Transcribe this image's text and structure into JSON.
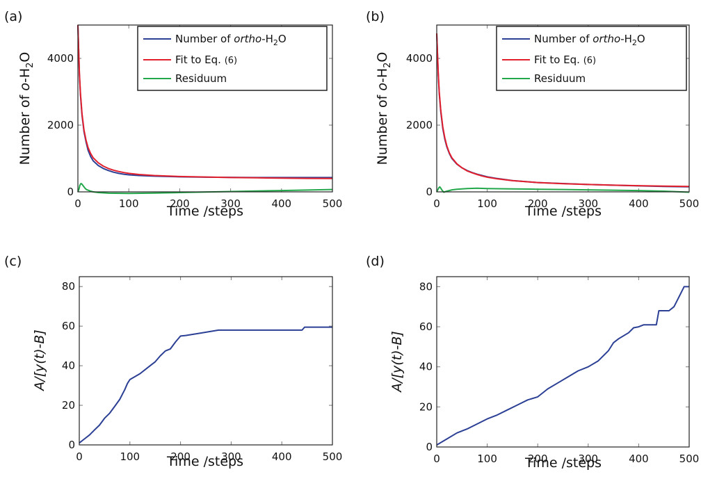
{
  "colors": {
    "number": "#2b3f95",
    "fit": "#e2202d",
    "residuum": "#22a84a",
    "axis": "#222222",
    "tick": "#777777"
  },
  "chart_data": [
    {
      "panel_label": "(a)",
      "type": "line",
      "xlabel": "Time /steps",
      "ylabel_parts": [
        "Number of ",
        "o",
        "-H",
        "2",
        "O"
      ],
      "xlim": [
        0,
        500
      ],
      "ylim": [
        0,
        5000
      ],
      "xticks": [
        0,
        100,
        200,
        300,
        400,
        500
      ],
      "yticks": [
        0,
        2000,
        4000
      ],
      "legend_position": "top-right",
      "legend": {
        "entry1_parts": [
          "Number of ",
          "ortho",
          "-H",
          "2",
          "O"
        ],
        "entry2_parts": [
          "Fit to Eq. ",
          "(6)"
        ],
        "entry3": "Residuum"
      },
      "series": [
        {
          "key": "number",
          "x": [
            0,
            3,
            5,
            8,
            12,
            16,
            20,
            25,
            30,
            40,
            50,
            60,
            70,
            80,
            90,
            100,
            120,
            150,
            200,
            250,
            300,
            350,
            400,
            450,
            500
          ],
          "y": [
            5000,
            3500,
            2900,
            2300,
            1800,
            1500,
            1250,
            1060,
            930,
            790,
            700,
            640,
            590,
            555,
            530,
            510,
            490,
            470,
            450,
            440,
            435,
            430,
            430,
            430,
            430
          ]
        },
        {
          "key": "fit",
          "x": [
            0,
            3,
            5,
            8,
            12,
            16,
            20,
            25,
            30,
            40,
            50,
            60,
            70,
            80,
            90,
            100,
            120,
            150,
            200,
            250,
            300,
            350,
            400,
            450,
            500
          ],
          "y": [
            5000,
            3550,
            2950,
            2350,
            1850,
            1550,
            1330,
            1150,
            1020,
            870,
            770,
            700,
            650,
            610,
            580,
            555,
            520,
            490,
            460,
            445,
            430,
            420,
            410,
            405,
            400
          ]
        },
        {
          "key": "residuum",
          "x": [
            0,
            2,
            4,
            6,
            8,
            10,
            12,
            14,
            16,
            18,
            20,
            25,
            30,
            40,
            60,
            100,
            150,
            200,
            300,
            400,
            500
          ],
          "y": [
            0,
            80,
            200,
            250,
            230,
            190,
            150,
            110,
            80,
            60,
            50,
            20,
            0,
            -20,
            -40,
            -45,
            -35,
            -20,
            10,
            40,
            70
          ]
        }
      ]
    },
    {
      "panel_label": "(b)",
      "type": "line",
      "xlabel": "Time /steps",
      "ylabel_parts": [
        "Number of ",
        "o",
        "-H",
        "2",
        "O"
      ],
      "xlim": [
        0,
        500
      ],
      "ylim": [
        0,
        5000
      ],
      "xticks": [
        0,
        100,
        200,
        300,
        400,
        500
      ],
      "yticks": [
        0,
        2000,
        4000
      ],
      "legend_position": "top-right",
      "legend": {
        "entry1_parts": [
          "Number of ",
          "ortho",
          "-H",
          "2",
          "O"
        ],
        "entry2_parts": [
          "Fit to Eq. ",
          "(6)"
        ],
        "entry3": "Residuum"
      },
      "series": [
        {
          "key": "number",
          "x": [
            0,
            3,
            5,
            8,
            12,
            16,
            20,
            25,
            30,
            40,
            50,
            60,
            70,
            80,
            90,
            100,
            120,
            150,
            200,
            250,
            300,
            350,
            400,
            450,
            500
          ],
          "y": [
            4750,
            3500,
            2950,
            2400,
            1900,
            1580,
            1350,
            1150,
            1000,
            830,
            720,
            640,
            580,
            530,
            490,
            450,
            400,
            340,
            280,
            250,
            220,
            200,
            180,
            160,
            150
          ]
        },
        {
          "key": "fit",
          "x": [
            0,
            3,
            5,
            8,
            12,
            16,
            20,
            25,
            30,
            40,
            50,
            60,
            70,
            80,
            90,
            100,
            120,
            150,
            200,
            250,
            300,
            350,
            400,
            450,
            500
          ],
          "y": [
            4750,
            3550,
            3000,
            2450,
            1950,
            1620,
            1380,
            1170,
            1020,
            840,
            720,
            630,
            570,
            520,
            475,
            440,
            390,
            335,
            280,
            245,
            220,
            200,
            185,
            170,
            160
          ]
        },
        {
          "key": "residuum",
          "x": [
            0,
            2,
            4,
            6,
            8,
            10,
            12,
            14,
            16,
            20,
            25,
            30,
            40,
            60,
            80,
            100,
            150,
            200,
            250,
            300,
            350,
            400,
            450,
            500
          ],
          "y": [
            0,
            60,
            120,
            150,
            110,
            60,
            20,
            -10,
            0,
            20,
            40,
            60,
            80,
            100,
            110,
            100,
            90,
            80,
            70,
            60,
            50,
            40,
            20,
            -10
          ]
        }
      ]
    },
    {
      "panel_label": "(c)",
      "type": "line",
      "xlabel": "Time /steps",
      "ylabel": "A/[y(t)-B]",
      "xlim": [
        0,
        500
      ],
      "ylim": [
        0,
        85
      ],
      "xticks": [
        0,
        100,
        200,
        300,
        400,
        500
      ],
      "yticks": [
        0,
        20,
        40,
        60,
        80
      ],
      "series": [
        {
          "key": "number",
          "x": [
            0,
            10,
            20,
            30,
            40,
            50,
            60,
            70,
            80,
            90,
            95,
            100,
            110,
            120,
            130,
            140,
            150,
            160,
            170,
            180,
            190,
            200,
            210,
            240,
            275,
            300,
            350,
            400,
            440,
            445,
            500
          ],
          "y": [
            1,
            3,
            5,
            7.5,
            10,
            13.5,
            16,
            19.5,
            23,
            28,
            31,
            33,
            34.5,
            36,
            38,
            40,
            42,
            45,
            47.5,
            48.5,
            52,
            55,
            55.3,
            56.5,
            58,
            58,
            58,
            58,
            58,
            59.5,
            59.5
          ]
        }
      ]
    },
    {
      "panel_label": "(d)",
      "type": "line",
      "xlabel": "Time /steps",
      "ylabel": "A/[y(t)-B]",
      "xlim": [
        0,
        500
      ],
      "ylim": [
        0,
        85
      ],
      "xticks": [
        0,
        100,
        200,
        300,
        400,
        500
      ],
      "yticks": [
        0,
        20,
        40,
        60,
        80
      ],
      "series": [
        {
          "key": "number",
          "x": [
            0,
            20,
            40,
            60,
            80,
            100,
            120,
            140,
            160,
            180,
            200,
            220,
            240,
            260,
            280,
            300,
            320,
            340,
            350,
            360,
            380,
            390,
            400,
            410,
            435,
            440,
            460,
            470,
            480,
            490,
            500
          ],
          "y": [
            1,
            4,
            7,
            9,
            11.5,
            14,
            16,
            18.5,
            21,
            23.5,
            25,
            29,
            32,
            35,
            38,
            40,
            43,
            48,
            52,
            54,
            57,
            59.5,
            60,
            61,
            61,
            68,
            68,
            70,
            75,
            80,
            80
          ]
        }
      ]
    }
  ]
}
